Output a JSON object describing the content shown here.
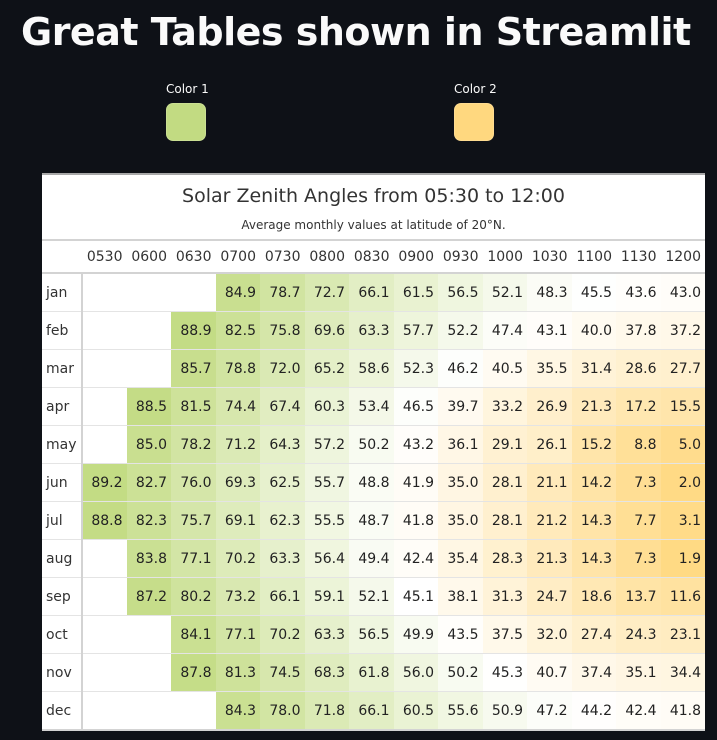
{
  "page": {
    "title": "Great Tables shown in Streamlit"
  },
  "pickers": [
    {
      "label": "Color 1",
      "value": "#C2DB82"
    },
    {
      "label": "Color 2",
      "value": "#FFD87F"
    }
  ],
  "table": {
    "title": "Solar Zenith Angles from 05:30 to 12:00",
    "subtitle": "Average monthly values at latitude of 20°N.",
    "columns": [
      "0530",
      "0600",
      "0630",
      "0700",
      "0730",
      "0800",
      "0830",
      "0900",
      "0930",
      "1000",
      "1030",
      "1100",
      "1130",
      "1200"
    ],
    "rows": [
      {
        "month": "jan",
        "values": [
          null,
          null,
          null,
          "84.9",
          "78.7",
          "72.7",
          "66.1",
          "61.5",
          "56.5",
          "52.1",
          "48.3",
          "45.5",
          "43.6",
          "43.0"
        ]
      },
      {
        "month": "feb",
        "values": [
          null,
          null,
          "88.9",
          "82.5",
          "75.8",
          "69.6",
          "63.3",
          "57.7",
          "52.2",
          "47.4",
          "43.1",
          "40.0",
          "37.8",
          "37.2"
        ]
      },
      {
        "month": "mar",
        "values": [
          null,
          null,
          "85.7",
          "78.8",
          "72.0",
          "65.2",
          "58.6",
          "52.3",
          "46.2",
          "40.5",
          "35.5",
          "31.4",
          "28.6",
          "27.7"
        ]
      },
      {
        "month": "apr",
        "values": [
          null,
          "88.5",
          "81.5",
          "74.4",
          "67.4",
          "60.3",
          "53.4",
          "46.5",
          "39.7",
          "33.2",
          "26.9",
          "21.3",
          "17.2",
          "15.5"
        ]
      },
      {
        "month": "may",
        "values": [
          null,
          "85.0",
          "78.2",
          "71.2",
          "64.3",
          "57.2",
          "50.2",
          "43.2",
          "36.1",
          "29.1",
          "26.1",
          "15.2",
          "8.8",
          "5.0"
        ]
      },
      {
        "month": "jun",
        "values": [
          "89.2",
          "82.7",
          "76.0",
          "69.3",
          "62.5",
          "55.7",
          "48.8",
          "41.9",
          "35.0",
          "28.1",
          "21.1",
          "14.2",
          "7.3",
          "2.0"
        ]
      },
      {
        "month": "jul",
        "values": [
          "88.8",
          "82.3",
          "75.7",
          "69.1",
          "62.3",
          "55.5",
          "48.7",
          "41.8",
          "35.0",
          "28.1",
          "21.2",
          "14.3",
          "7.7",
          "3.1"
        ]
      },
      {
        "month": "aug",
        "values": [
          null,
          "83.8",
          "77.1",
          "70.2",
          "63.3",
          "56.4",
          "49.4",
          "42.4",
          "35.4",
          "28.3",
          "21.3",
          "14.3",
          "7.3",
          "1.9"
        ]
      },
      {
        "month": "sep",
        "values": [
          null,
          "87.2",
          "80.2",
          "73.2",
          "66.1",
          "59.1",
          "52.1",
          "45.1",
          "38.1",
          "31.3",
          "24.7",
          "18.6",
          "13.7",
          "11.6"
        ]
      },
      {
        "month": "oct",
        "values": [
          null,
          null,
          "84.1",
          "77.1",
          "70.2",
          "63.3",
          "56.5",
          "49.9",
          "43.5",
          "37.5",
          "32.0",
          "27.4",
          "24.3",
          "23.1"
        ]
      },
      {
        "month": "nov",
        "values": [
          null,
          null,
          "87.8",
          "81.3",
          "74.5",
          "68.3",
          "61.8",
          "56.0",
          "50.2",
          "45.3",
          "40.7",
          "37.4",
          "35.1",
          "34.4"
        ]
      },
      {
        "month": "dec",
        "values": [
          null,
          null,
          null,
          "84.3",
          "78.0",
          "71.8",
          "66.1",
          "60.5",
          "55.6",
          "50.9",
          "47.2",
          "44.2",
          "42.4",
          "41.8"
        ]
      }
    ]
  }
}
